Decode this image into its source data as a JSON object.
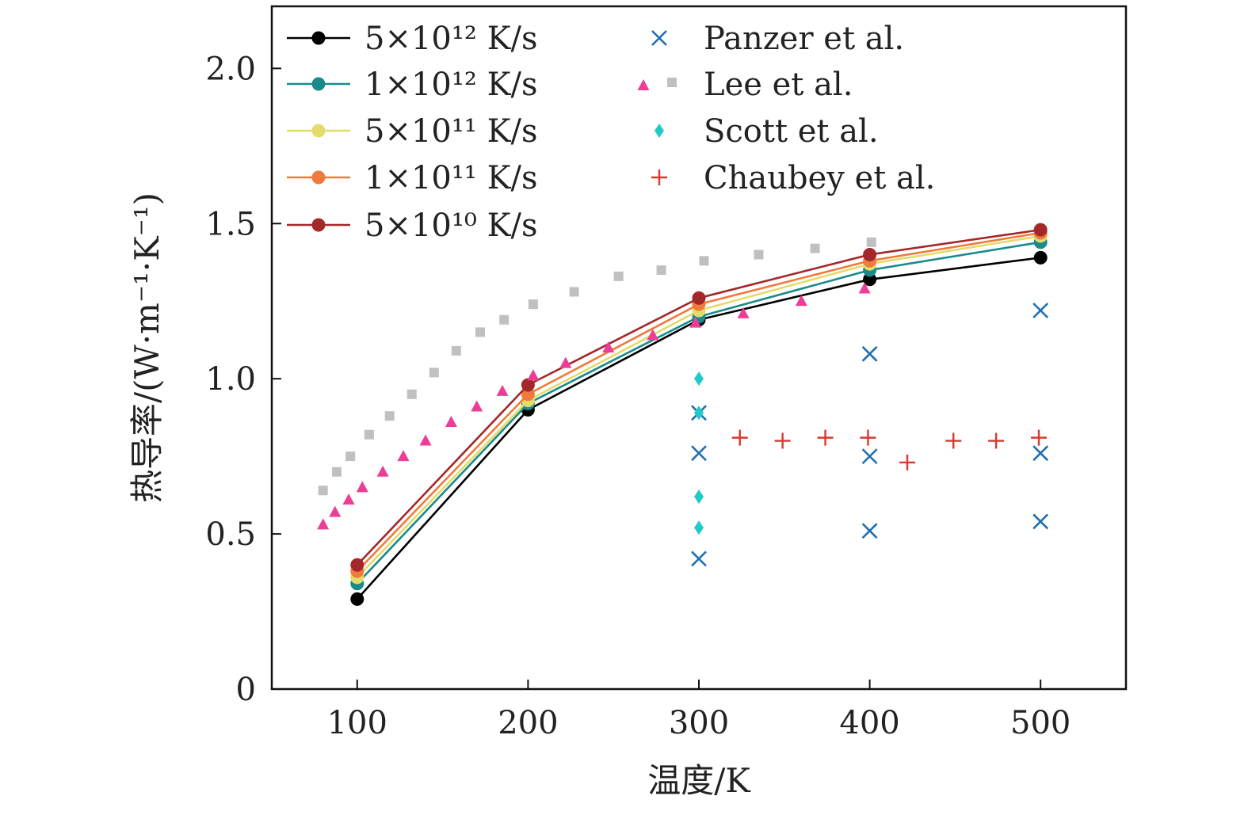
{
  "chart_data": {
    "type": "scatter",
    "xlabel": "温度/K",
    "ylabel": "热导率/(W·m⁻¹·K⁻¹)",
    "xlim": [
      50,
      550
    ],
    "ylim": [
      0,
      2.2
    ],
    "x_ticks": [
      100,
      200,
      300,
      400,
      500
    ],
    "x_tick_labels": [
      "100",
      "200",
      "300",
      "400",
      "500"
    ],
    "y_ticks": [
      0,
      0.5,
      1.0,
      1.5,
      2.0
    ],
    "y_tick_labels": [
      "0",
      "0.5",
      "1.0",
      "1.5",
      "2.0"
    ],
    "grid": false,
    "legend_placement": "top-left",
    "series": [
      {
        "name": "5×10¹² K/s",
        "kind": "line-marker",
        "marker": "circle",
        "color": "#000000",
        "x": [
          100,
          200,
          300,
          400,
          500
        ],
        "y": [
          0.29,
          0.9,
          1.19,
          1.32,
          1.39
        ]
      },
      {
        "name": "1×10¹² K/s",
        "kind": "line-marker",
        "marker": "circle",
        "color": "#1a8a8a",
        "x": [
          100,
          200,
          300,
          400,
          500
        ],
        "y": [
          0.34,
          0.92,
          1.2,
          1.35,
          1.44
        ]
      },
      {
        "name": "5×10¹¹ K/s",
        "kind": "line-marker",
        "marker": "circle",
        "color": "#e3dc6a",
        "x": [
          100,
          200,
          300,
          400,
          500
        ],
        "y": [
          0.36,
          0.93,
          1.22,
          1.37,
          1.46
        ]
      },
      {
        "name": "1×10¹¹ K/s",
        "kind": "line-marker",
        "marker": "circle",
        "color": "#f07a3c",
        "x": [
          100,
          200,
          300,
          400,
          500
        ],
        "y": [
          0.38,
          0.95,
          1.24,
          1.38,
          1.47
        ]
      },
      {
        "name": "5×10¹⁰ K/s",
        "kind": "line-marker",
        "marker": "circle",
        "color": "#a3282a",
        "x": [
          100,
          200,
          300,
          400,
          500
        ],
        "y": [
          0.4,
          0.98,
          1.26,
          1.4,
          1.48
        ]
      },
      {
        "name": "Panzer et al.",
        "kind": "marker",
        "marker": "x",
        "color": "#1f6fb2",
        "x": [
          300,
          300,
          300,
          400,
          400,
          400,
          500,
          500,
          500
        ],
        "y": [
          0.89,
          0.76,
          0.42,
          1.08,
          0.75,
          0.51,
          1.22,
          0.76,
          0.54
        ]
      },
      {
        "name": "Lee et al.",
        "kind": "marker",
        "marker": "triangle",
        "color": "#ee3d96",
        "x": [
          80,
          87,
          95,
          103,
          115,
          127,
          140,
          155,
          170,
          185,
          203,
          222,
          247,
          273,
          298,
          326,
          360,
          397
        ],
        "y": [
          0.53,
          0.57,
          0.61,
          0.65,
          0.7,
          0.75,
          0.8,
          0.86,
          0.91,
          0.96,
          1.01,
          1.05,
          1.1,
          1.14,
          1.18,
          1.21,
          1.25,
          1.29
        ]
      },
      {
        "name": "",
        "kind": "marker",
        "marker": "square",
        "color": "#c0c0c0",
        "x": [
          80,
          88,
          96,
          107,
          119,
          132,
          145,
          158,
          172,
          186,
          203,
          227,
          253,
          278,
          303,
          335,
          368,
          401
        ],
        "y": [
          0.64,
          0.7,
          0.75,
          0.82,
          0.88,
          0.95,
          1.02,
          1.09,
          1.15,
          1.19,
          1.24,
          1.28,
          1.33,
          1.35,
          1.38,
          1.4,
          1.42,
          1.44
        ]
      },
      {
        "name": "Scott et al.",
        "kind": "marker",
        "marker": "diamond",
        "color": "#22c9c9",
        "x": [
          300,
          300,
          300,
          300
        ],
        "y": [
          1.0,
          0.89,
          0.62,
          0.52
        ]
      },
      {
        "name": "Chaubey et al.",
        "kind": "marker",
        "marker": "plus",
        "color": "#d8392f",
        "x": [
          324,
          349,
          374,
          399,
          422,
          449,
          474,
          499
        ],
        "y": [
          0.81,
          0.8,
          0.81,
          0.81,
          0.73,
          0.8,
          0.8,
          0.81
        ]
      }
    ],
    "legend": {
      "col1": [
        {
          "label": "5×10¹² K/s",
          "color": "#000000",
          "marker": "circle-line"
        },
        {
          "label": "1×10¹² K/s",
          "color": "#1a8a8a",
          "marker": "circle-line"
        },
        {
          "label": "5×10¹¹ K/s",
          "color": "#e3dc6a",
          "marker": "circle-line"
        },
        {
          "label": "1×10¹¹ K/s",
          "color": "#f07a3c",
          "marker": "circle-line"
        },
        {
          "label": "5×10¹⁰ K/s",
          "color": "#a3282a",
          "marker": "circle-line"
        }
      ],
      "col2": [
        {
          "label": "Panzer et al.",
          "color": "#1f6fb2",
          "marker": "x"
        },
        {
          "label": "Lee et al.",
          "color": "#ee3d96",
          "marker": "triangle+square",
          "color2": "#c0c0c0"
        },
        {
          "label": "Scott et al.",
          "color": "#22c9c9",
          "marker": "diamond"
        },
        {
          "label": "Chaubey et al.",
          "color": "#d8392f",
          "marker": "plus"
        }
      ]
    }
  }
}
